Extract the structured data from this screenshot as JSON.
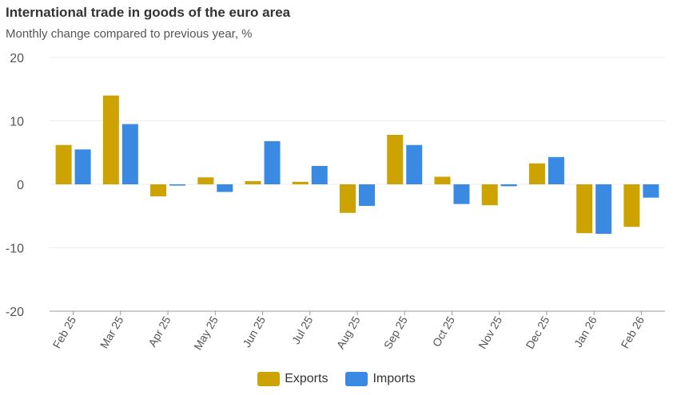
{
  "chart_data": {
    "type": "bar",
    "title": "International trade in goods of the euro area",
    "subtitle": "Monthly change compared to previous year, %",
    "categories": [
      "Feb 25",
      "Mar 25",
      "Apr 25",
      "May 25",
      "Jun 25",
      "Jul 25",
      "Aug 25",
      "Sep 25",
      "Oct 25",
      "Nov 25",
      "Dec 25",
      "Jan 26",
      "Feb 26"
    ],
    "series": [
      {
        "name": "Exports",
        "color": "#cca300",
        "values": [
          6.2,
          14.0,
          -1.9,
          1.1,
          0.5,
          0.4,
          -4.5,
          7.8,
          1.2,
          -3.3,
          3.3,
          -7.7,
          -6.7
        ]
      },
      {
        "name": "Imports",
        "color": "#3a8ae3",
        "values": [
          5.5,
          9.5,
          -0.2,
          -1.2,
          6.8,
          2.9,
          -3.4,
          6.2,
          -3.1,
          -0.3,
          4.3,
          -7.8,
          -2.1
        ]
      }
    ],
    "ylim": [
      -20,
      20
    ],
    "yticks": [
      "20",
      "10",
      "0",
      "-10",
      "-20"
    ],
    "grid": true,
    "legend": "bottom"
  }
}
